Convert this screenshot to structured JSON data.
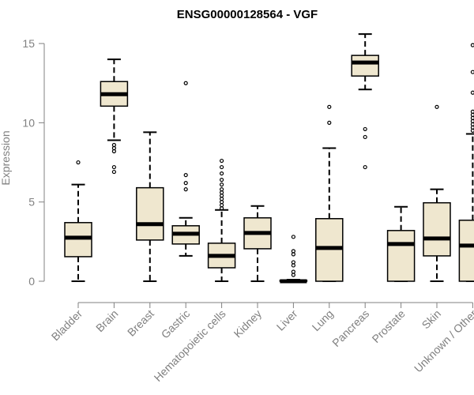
{
  "chart_data": {
    "type": "boxplot",
    "title": "ENSG00000128564 - VGF",
    "xlabel": "",
    "ylabel": "Expression",
    "ylim": [
      0,
      15.6
    ],
    "yticks": [
      0,
      5,
      10,
      15
    ],
    "box_fill": "#efe7cf",
    "box_stroke": "#000000",
    "axis_color": "#808080",
    "categories": [
      "Bladder",
      "Brain",
      "Breast",
      "Gastric",
      "Hematopoietic cells",
      "Kidney",
      "Liver",
      "Lung",
      "Pancreas",
      "Prostate",
      "Skin",
      "Unknown / Other"
    ],
    "series": [
      {
        "name": "Bladder",
        "min": 0,
        "q1": 1.55,
        "median": 2.75,
        "q3": 3.7,
        "max": 6.1,
        "outliers": [
          7.5
        ]
      },
      {
        "name": "Brain",
        "min": 8.9,
        "q1": 11.05,
        "median": 11.8,
        "q3": 12.6,
        "max": 14.0,
        "outliers": [
          8.6,
          8.4,
          8.2,
          7.2,
          6.9
        ]
      },
      {
        "name": "Breast",
        "min": 0,
        "q1": 2.6,
        "median": 3.6,
        "q3": 5.9,
        "max": 9.4,
        "outliers": []
      },
      {
        "name": "Gastric",
        "min": 1.6,
        "q1": 2.35,
        "median": 3.0,
        "q3": 3.5,
        "max": 4.0,
        "outliers": [
          12.5,
          6.7,
          6.2,
          5.8
        ]
      },
      {
        "name": "Hematopoietic cells",
        "min": 0,
        "q1": 0.85,
        "median": 1.6,
        "q3": 2.4,
        "max": 4.5,
        "outliers": [
          7.6,
          7.2,
          6.8,
          6.4,
          6.1,
          5.8,
          5.6,
          5.4,
          5.2,
          5.0,
          4.8,
          4.6
        ]
      },
      {
        "name": "Kidney",
        "min": 0,
        "q1": 2.05,
        "median": 3.05,
        "q3": 4.0,
        "max": 4.75,
        "outliers": []
      },
      {
        "name": "Liver",
        "min": 0,
        "q1": 0,
        "median": 0,
        "q3": 0.05,
        "max": 0.1,
        "outliers": [
          2.8,
          1.9,
          1.7,
          1.2,
          1.0,
          0.6,
          0.4
        ]
      },
      {
        "name": "Lung",
        "min": 0,
        "q1": 0,
        "median": 2.1,
        "q3": 3.95,
        "max": 8.4,
        "outliers": [
          11.0,
          10.0
        ]
      },
      {
        "name": "Pancreas",
        "min": 12.1,
        "q1": 12.95,
        "median": 13.8,
        "q3": 14.25,
        "max": 15.6,
        "outliers": [
          9.6,
          9.1,
          7.2
        ]
      },
      {
        "name": "Prostate",
        "min": 0,
        "q1": 0,
        "median": 2.35,
        "q3": 3.2,
        "max": 4.7,
        "outliers": []
      },
      {
        "name": "Skin",
        "min": 0,
        "q1": 1.6,
        "median": 2.7,
        "q3": 4.95,
        "max": 5.8,
        "outliers": [
          11.0
        ]
      },
      {
        "name": "Unknown / Other",
        "min": 0,
        "q1": 0,
        "median": 2.25,
        "q3": 3.85,
        "max": 9.3,
        "outliers": [
          14.9,
          13.2,
          11.9,
          10.7,
          10.5,
          10.3,
          10.1,
          9.9,
          9.7,
          9.5
        ]
      }
    ]
  }
}
